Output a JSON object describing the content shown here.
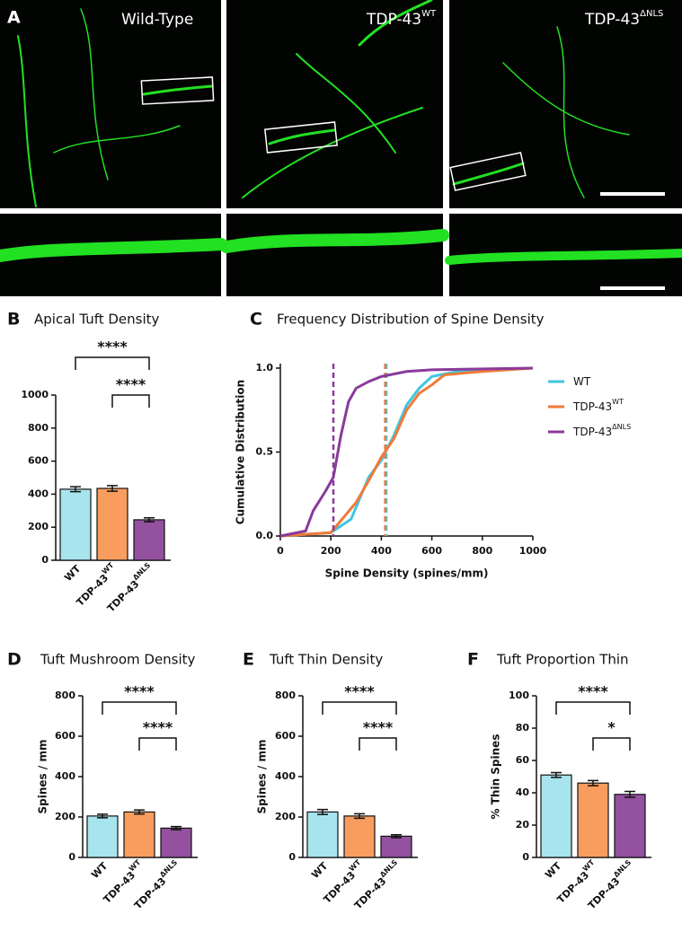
{
  "image_panel": {
    "label": "A",
    "titles": [
      {
        "text": "Wild-Type"
      },
      {
        "text": "TDP-43",
        "sup": "WT"
      },
      {
        "text": "TDP-43",
        "sup": "ΔNLS"
      }
    ]
  },
  "chart_data": [
    {
      "type": "bar",
      "panel": "B",
      "title": "Apical Tuft Density",
      "categories": [
        {
          "text": "WT"
        },
        {
          "text": "TDP-43",
          "sup": "WT"
        },
        {
          "text": "TDP-43",
          "sup": "ΔNLS"
        }
      ],
      "values": [
        430,
        435,
        245
      ],
      "errors": [
        15,
        17,
        12
      ],
      "colors": [
        "#a8e4ee",
        "#f89d5e",
        "#93519f"
      ],
      "ylim": [
        0,
        1000
      ],
      "yticks": [
        0,
        200,
        400,
        600,
        800,
        1000
      ],
      "annotations": [
        "****",
        "****"
      ]
    },
    {
      "type": "line",
      "panel": "C",
      "title": "Frequency Distribution of Spine Density",
      "x_label": "Spine Density (spines/mm)",
      "y_label": "Cumulative Distribution",
      "xlim": [
        0,
        1000
      ],
      "xticks": [
        0,
        200,
        400,
        600,
        800,
        1000
      ],
      "ylim": [
        0,
        1
      ],
      "yticks": [
        {
          "value": 0,
          "label": "0.0"
        },
        0.5,
        {
          "value": 1,
          "label": "1.0"
        }
      ],
      "series": [
        {
          "name": "WT",
          "color": "#3ec6e0",
          "median": 420,
          "x": [
            0,
            200,
            280,
            350,
            400,
            450,
            500,
            550,
            600,
            700,
            1000
          ],
          "values": [
            0,
            0.02,
            0.1,
            0.35,
            0.45,
            0.6,
            0.78,
            0.88,
            0.95,
            0.98,
            1
          ]
        },
        {
          "name": "TDP-43",
          "sup": "WT",
          "color": "#f07a3a",
          "median": 415,
          "x": [
            0,
            200,
            300,
            350,
            400,
            450,
            500,
            550,
            600,
            650,
            800,
            1000
          ],
          "values": [
            0,
            0.02,
            0.2,
            0.33,
            0.47,
            0.58,
            0.75,
            0.85,
            0.9,
            0.96,
            0.98,
            1
          ]
        },
        {
          "name": "TDP-43",
          "sup": "ΔNLS",
          "color": "#8a3a9a",
          "median": 210,
          "x": [
            0,
            100,
            130,
            180,
            210,
            240,
            270,
            300,
            350,
            400,
            500,
            600,
            1000
          ],
          "values": [
            0,
            0.03,
            0.15,
            0.27,
            0.35,
            0.6,
            0.8,
            0.88,
            0.92,
            0.95,
            0.98,
            0.99,
            1
          ]
        }
      ]
    },
    {
      "type": "bar",
      "panel": "D",
      "title": "Tuft Mushroom Density",
      "y_label": "Spines / mm",
      "categories": [
        {
          "text": "WT"
        },
        {
          "text": "TDP-43",
          "sup": "WT"
        },
        {
          "text": "TDP-43",
          "sup": "ΔNLS"
        }
      ],
      "values": [
        205,
        225,
        145
      ],
      "errors": [
        9,
        10,
        8
      ],
      "colors": [
        "#a8e4ee",
        "#f89d5e",
        "#93519f"
      ],
      "ylim": [
        0,
        800
      ],
      "yticks": [
        0,
        200,
        400,
        600,
        800
      ],
      "annotations": [
        "****",
        "****"
      ]
    },
    {
      "type": "bar",
      "panel": "E",
      "title": "Tuft Thin Density",
      "y_label": "Spines / mm",
      "categories": [
        {
          "text": "WT"
        },
        {
          "text": "TDP-43",
          "sup": "WT"
        },
        {
          "text": "TDP-43",
          "sup": "ΔNLS"
        }
      ],
      "values": [
        225,
        205,
        105
      ],
      "errors": [
        12,
        11,
        7
      ],
      "colors": [
        "#a8e4ee",
        "#f89d5e",
        "#93519f"
      ],
      "ylim": [
        0,
        800
      ],
      "yticks": [
        0,
        200,
        400,
        600,
        800
      ],
      "annotations": [
        "****",
        "****"
      ]
    },
    {
      "type": "bar",
      "panel": "F",
      "title": "Tuft Proportion Thin",
      "y_label": "% Thin Spines",
      "categories": [
        {
          "text": "WT"
        },
        {
          "text": "TDP-43",
          "sup": "WT"
        },
        {
          "text": "TDP-43",
          "sup": "ΔNLS"
        }
      ],
      "values": [
        51,
        46,
        39
      ],
      "errors": [
        1.5,
        1.6,
        1.8
      ],
      "colors": [
        "#a8e4ee",
        "#f89d5e",
        "#93519f"
      ],
      "ylim": [
        0,
        100
      ],
      "yticks": [
        0,
        20,
        40,
        60,
        80,
        100
      ],
      "annotations": [
        "****",
        "*"
      ]
    }
  ]
}
